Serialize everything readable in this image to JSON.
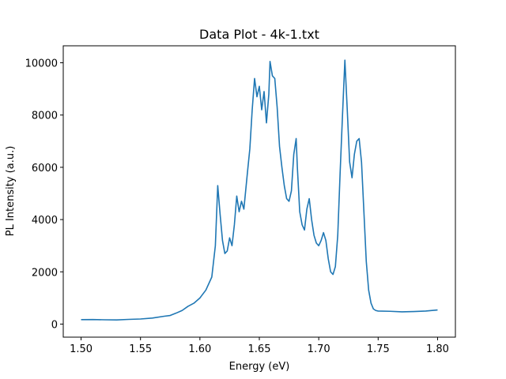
{
  "chart_data": {
    "type": "line",
    "title": "Data Plot - 4k-1.txt",
    "xlabel": "Energy (eV)",
    "ylabel": "PL Intensity (a.u.)",
    "xlim": [
      1.485,
      1.815
    ],
    "ylim": [
      -500,
      10650
    ],
    "x_ticks": [
      1.5,
      1.55,
      1.6,
      1.65,
      1.7,
      1.75,
      1.8
    ],
    "x_tick_labels": [
      "1.50",
      "1.55",
      "1.60",
      "1.65",
      "1.70",
      "1.75",
      "1.80"
    ],
    "y_ticks": [
      0,
      2000,
      4000,
      6000,
      8000,
      10000
    ],
    "y_tick_labels": [
      "0",
      "2000",
      "4000",
      "6000",
      "8000",
      "10000"
    ],
    "grid": false,
    "legend": "none",
    "color": "#1f77b4",
    "series": [
      {
        "points": [
          [
            1.5,
            170
          ],
          [
            1.51,
            175
          ],
          [
            1.52,
            165
          ],
          [
            1.53,
            160
          ],
          [
            1.54,
            180
          ],
          [
            1.55,
            195
          ],
          [
            1.56,
            230
          ],
          [
            1.57,
            300
          ],
          [
            1.575,
            330
          ],
          [
            1.58,
            420
          ],
          [
            1.585,
            520
          ],
          [
            1.59,
            680
          ],
          [
            1.595,
            800
          ],
          [
            1.6,
            1000
          ],
          [
            1.605,
            1300
          ],
          [
            1.61,
            1800
          ],
          [
            1.613,
            3000
          ],
          [
            1.615,
            5300
          ],
          [
            1.617,
            4200
          ],
          [
            1.619,
            3200
          ],
          [
            1.621,
            2700
          ],
          [
            1.623,
            2800
          ],
          [
            1.625,
            3300
          ],
          [
            1.627,
            3000
          ],
          [
            1.629,
            3800
          ],
          [
            1.631,
            4900
          ],
          [
            1.633,
            4300
          ],
          [
            1.635,
            4700
          ],
          [
            1.637,
            4400
          ],
          [
            1.64,
            5800
          ],
          [
            1.642,
            6700
          ],
          [
            1.644,
            8200
          ],
          [
            1.646,
            9400
          ],
          [
            1.648,
            8700
          ],
          [
            1.65,
            9100
          ],
          [
            1.652,
            8200
          ],
          [
            1.654,
            8900
          ],
          [
            1.656,
            7700
          ],
          [
            1.658,
            8800
          ],
          [
            1.659,
            10050
          ],
          [
            1.661,
            9500
          ],
          [
            1.663,
            9400
          ],
          [
            1.665,
            8300
          ],
          [
            1.667,
            6800
          ],
          [
            1.669,
            6000
          ],
          [
            1.671,
            5300
          ],
          [
            1.673,
            4800
          ],
          [
            1.675,
            4700
          ],
          [
            1.677,
            5100
          ],
          [
            1.679,
            6500
          ],
          [
            1.681,
            7100
          ],
          [
            1.682,
            6000
          ],
          [
            1.684,
            4300
          ],
          [
            1.686,
            3800
          ],
          [
            1.688,
            3600
          ],
          [
            1.69,
            4400
          ],
          [
            1.692,
            4800
          ],
          [
            1.694,
            4000
          ],
          [
            1.696,
            3400
          ],
          [
            1.698,
            3100
          ],
          [
            1.7,
            3000
          ],
          [
            1.702,
            3200
          ],
          [
            1.704,
            3500
          ],
          [
            1.706,
            3200
          ],
          [
            1.708,
            2500
          ],
          [
            1.71,
            2000
          ],
          [
            1.712,
            1900
          ],
          [
            1.714,
            2200
          ],
          [
            1.716,
            3400
          ],
          [
            1.718,
            5800
          ],
          [
            1.72,
            8000
          ],
          [
            1.722,
            10100
          ],
          [
            1.724,
            8200
          ],
          [
            1.726,
            6200
          ],
          [
            1.728,
            5600
          ],
          [
            1.73,
            6500
          ],
          [
            1.732,
            7000
          ],
          [
            1.734,
            7100
          ],
          [
            1.736,
            6200
          ],
          [
            1.738,
            4300
          ],
          [
            1.74,
            2400
          ],
          [
            1.742,
            1300
          ],
          [
            1.744,
            800
          ],
          [
            1.746,
            580
          ],
          [
            1.748,
            520
          ],
          [
            1.75,
            500
          ],
          [
            1.76,
            490
          ],
          [
            1.77,
            470
          ],
          [
            1.78,
            480
          ],
          [
            1.79,
            500
          ],
          [
            1.8,
            540
          ]
        ]
      }
    ]
  }
}
